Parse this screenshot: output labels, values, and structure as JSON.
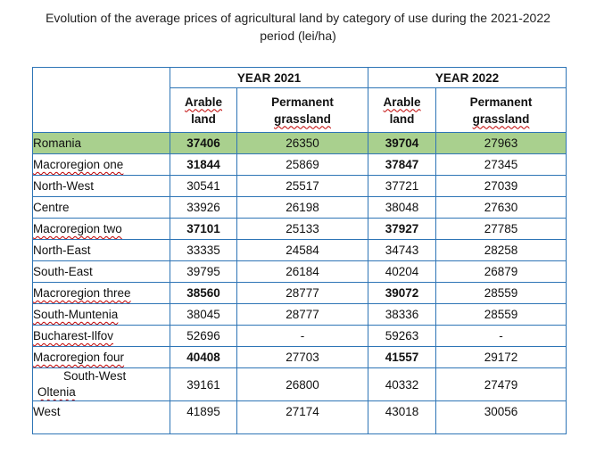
{
  "title": "Evolution of the average prices of agricultural land by category of use during the 2021-2022 period (lei/ha)",
  "headers": {
    "year_2021": "YEAR 2021",
    "year_2022": "YEAR 2022",
    "arable_2021_a": "Arable",
    "arable_2021_b": "land",
    "perm_2021_a": "Permanent",
    "perm_2021_b": "grassland",
    "arable_2022_a": "Arable",
    "arable_2022_b": "land",
    "perm_2022_a": "Permanent",
    "perm_2022_b": "grassland"
  },
  "rows": [
    {
      "region": "Romania",
      "a2021": "37406",
      "p2021": "26350",
      "a2022": "39704",
      "p2022": "27963"
    },
    {
      "region": "Macroregion one",
      "a2021": "31844",
      "p2021": "25869",
      "a2022": "37847",
      "p2022": "27345"
    },
    {
      "region": "North-West",
      "a2021": "30541",
      "p2021": "25517",
      "a2022": "37721",
      "p2022": "27039"
    },
    {
      "region": "Centre",
      "a2021": "33926",
      "p2021": "26198",
      "a2022": "38048",
      "p2022": "27630"
    },
    {
      "region": "Macroregion two",
      "a2021": "37101",
      "p2021": "25133",
      "a2022": "37927",
      "p2022": "27785"
    },
    {
      "region": "North-East",
      "a2021": "33335",
      "p2021": "24584",
      "a2022": "34743",
      "p2022": "28258"
    },
    {
      "region": "South-East",
      "a2021": "39795",
      "p2021": "26184",
      "a2022": "40204",
      "p2022": "26879"
    },
    {
      "region": "Macroregion three",
      "a2021": "38560",
      "p2021": "28777",
      "a2022": "39072",
      "p2022": "28559"
    },
    {
      "region": "South-Muntenia",
      "a2021": "38045",
      "p2021": "28777",
      "a2022": "38336",
      "p2022": "28559"
    },
    {
      "region": "Bucharest-Ilfov",
      "a2021": "52696",
      "p2021": "-",
      "a2022": "59263",
      "p2022": "-"
    },
    {
      "region": "Macroregion four",
      "a2021": "40408",
      "p2021": "27703",
      "a2022": "41557",
      "p2022": "29172"
    },
    {
      "region_line1": "South-West",
      "region_line2": "Oltenia",
      "a2021": "39161",
      "p2021": "26800",
      "a2022": "40332",
      "p2022": "27479"
    },
    {
      "region": "West",
      "a2021": "41895",
      "p2021": "27174",
      "a2022": "43018",
      "p2022": "30056"
    }
  ]
}
